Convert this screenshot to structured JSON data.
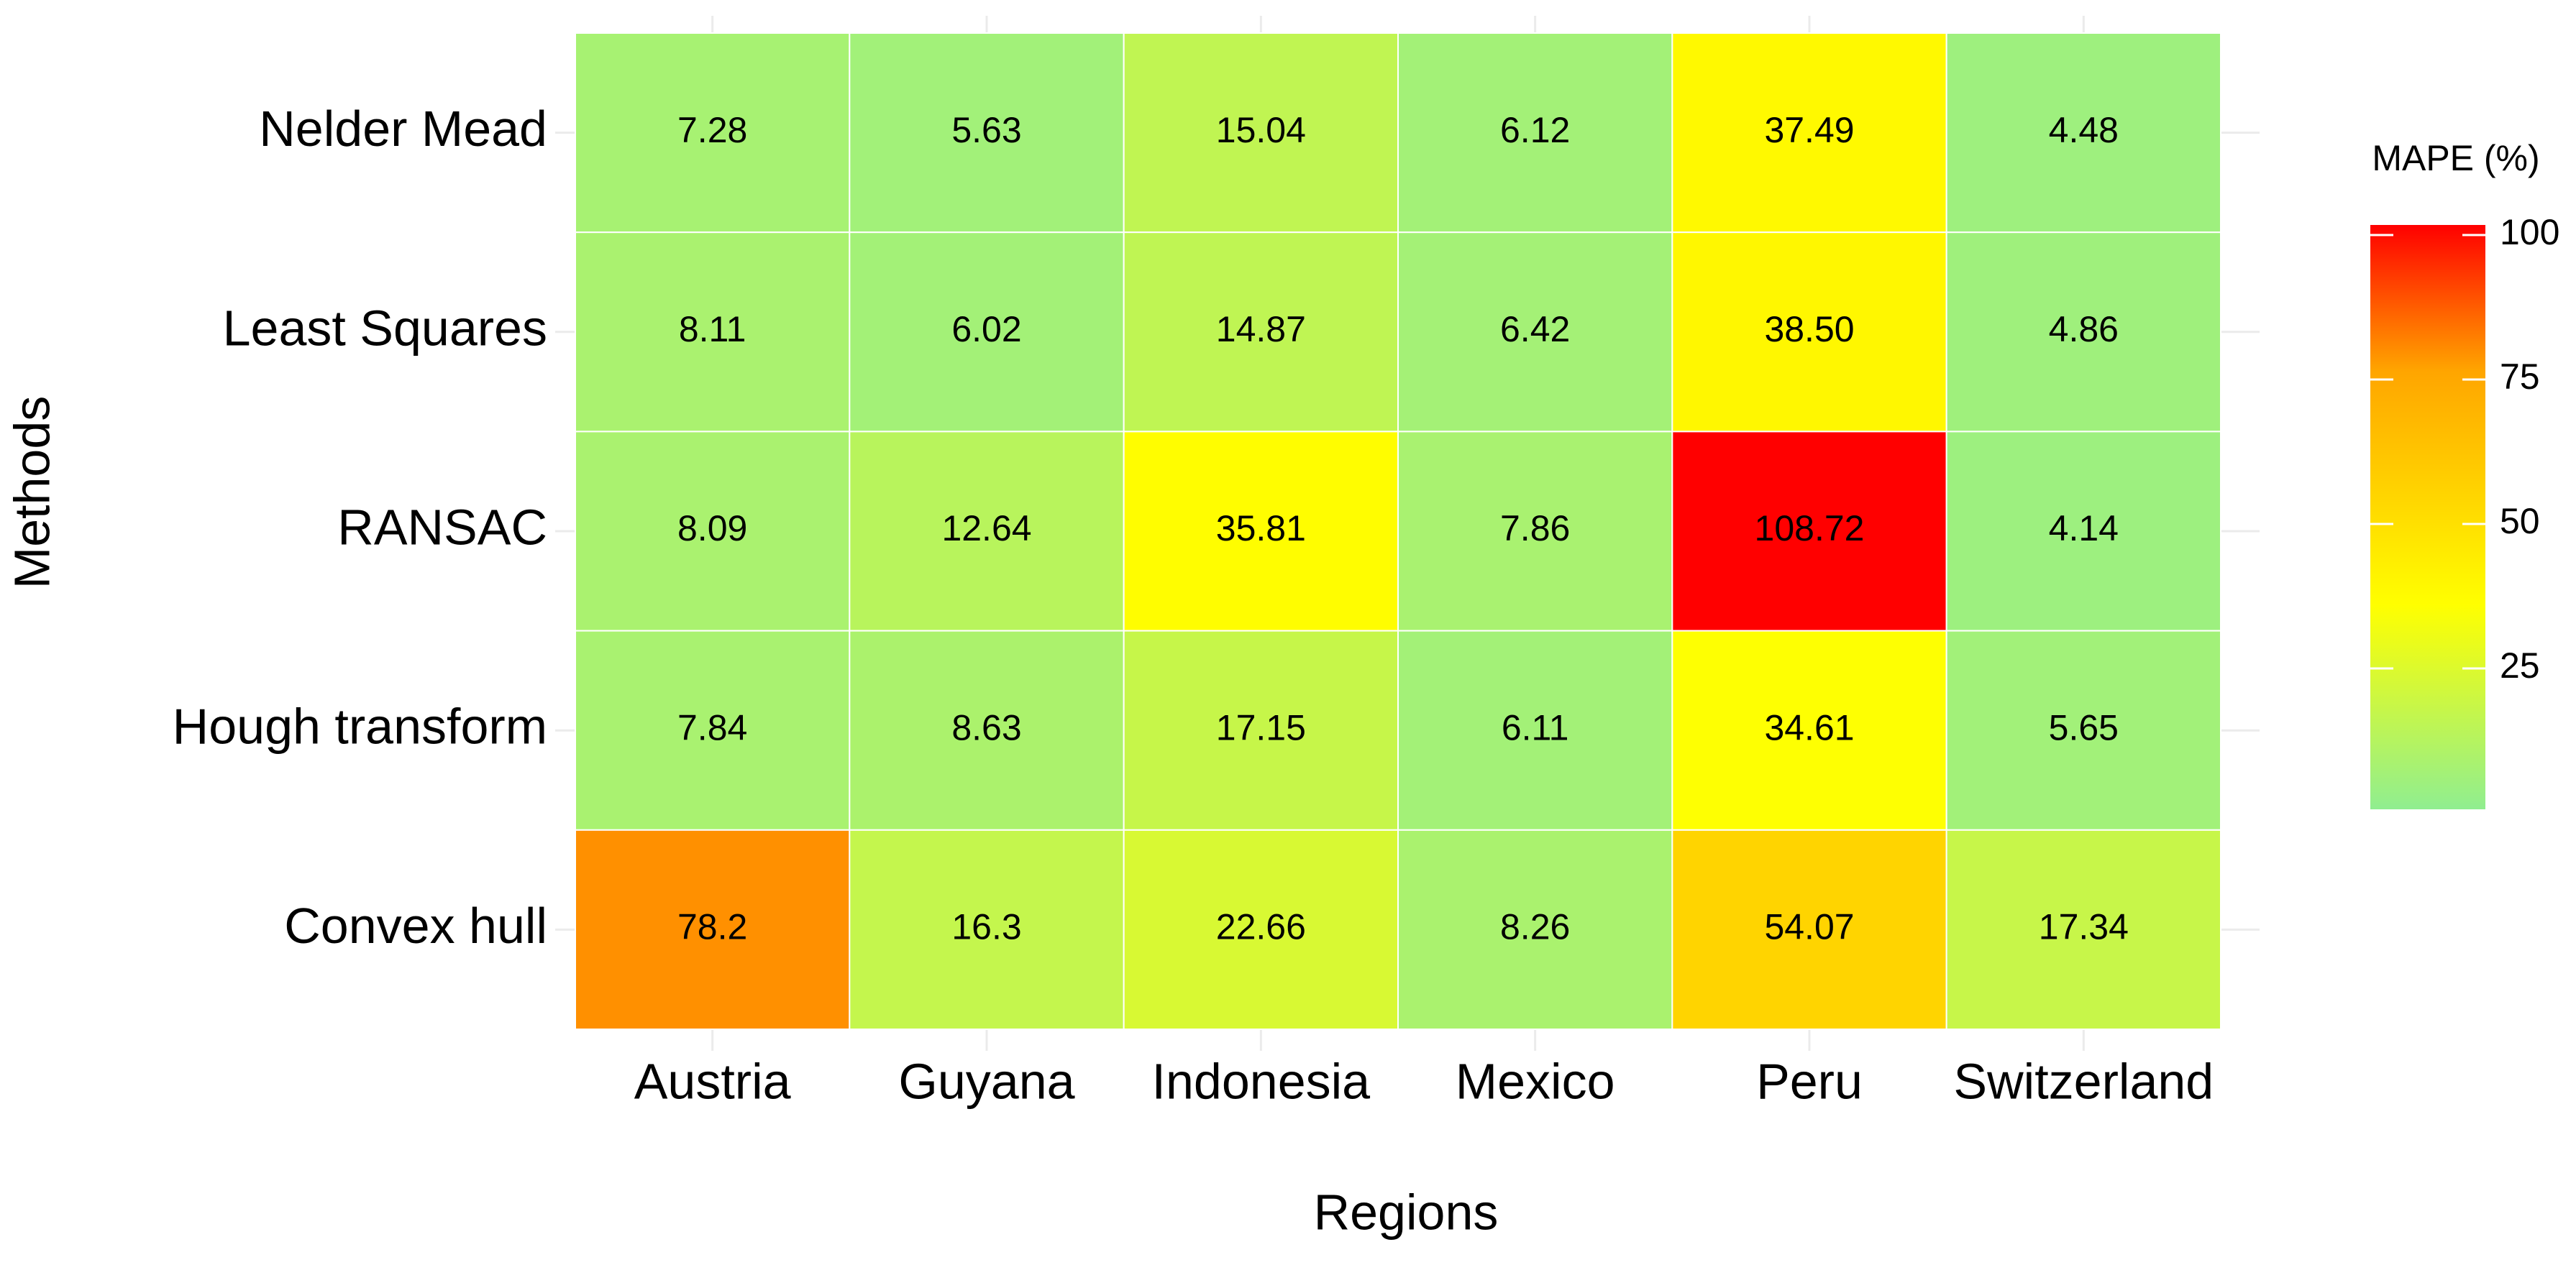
{
  "chart_data": {
    "type": "heatmap",
    "x_label": "Regions",
    "y_label": "Methods",
    "x_categories": [
      "Austria",
      "Guyana",
      "Indonesia",
      "Mexico",
      "Peru",
      "Switzerland"
    ],
    "y_categories": [
      "Nelder Mead",
      "Least Squares",
      "RANSAC",
      "Hough transform",
      "Convex hull"
    ],
    "values": [
      [
        7.28,
        5.63,
        15.04,
        6.12,
        37.49,
        4.48
      ],
      [
        8.11,
        6.02,
        14.87,
        6.42,
        38.5,
        4.86
      ],
      [
        8.09,
        12.64,
        35.81,
        7.86,
        108.72,
        4.14
      ],
      [
        7.84,
        8.63,
        17.15,
        6.11,
        34.61,
        5.65
      ],
      [
        78.2,
        16.3,
        22.66,
        8.26,
        54.07,
        17.34
      ]
    ],
    "value_labels": [
      [
        "7.28",
        "5.63",
        "15.04",
        "6.12",
        "37.49",
        "4.48"
      ],
      [
        "8.11",
        "6.02",
        "14.87",
        "6.42",
        "38.50",
        "4.86"
      ],
      [
        "8.09",
        "12.64",
        "35.81",
        "7.86",
        "108.72",
        "4.14"
      ],
      [
        "7.84",
        "8.63",
        "17.15",
        "6.11",
        "34.61",
        "5.65"
      ],
      [
        "78.2",
        "16.3",
        "22.66",
        "8.26",
        "54.07",
        "17.34"
      ]
    ],
    "legend_title": "MAPE (%)",
    "legend_position": "right",
    "clim": [
      0,
      100
    ],
    "colorbar_ticks": [
      25,
      50,
      75,
      100
    ],
    "colorscale": [
      {
        "value": 0,
        "color": "#90EE90"
      },
      {
        "value": 35,
        "color": "#FFFF00"
      },
      {
        "value": 75,
        "color": "#FFA500"
      },
      {
        "value": 100,
        "color": "#FF0000"
      }
    ],
    "grid": true
  }
}
